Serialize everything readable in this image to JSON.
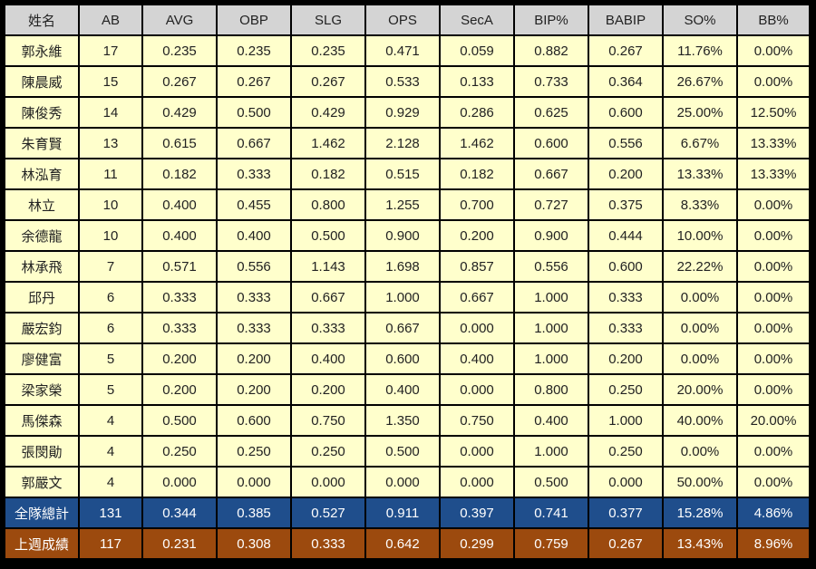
{
  "columns": [
    "姓名",
    "AB",
    "AVG",
    "OBP",
    "SLG",
    "OPS",
    "SecA",
    "BIP%",
    "BABIP",
    "SO%",
    "BB%"
  ],
  "rows": [
    [
      "郭永維",
      "17",
      "0.235",
      "0.235",
      "0.235",
      "0.471",
      "0.059",
      "0.882",
      "0.267",
      "11.76%",
      "0.00%"
    ],
    [
      "陳晨威",
      "15",
      "0.267",
      "0.267",
      "0.267",
      "0.533",
      "0.133",
      "0.733",
      "0.364",
      "26.67%",
      "0.00%"
    ],
    [
      "陳俊秀",
      "14",
      "0.429",
      "0.500",
      "0.429",
      "0.929",
      "0.286",
      "0.625",
      "0.600",
      "25.00%",
      "12.50%"
    ],
    [
      "朱育賢",
      "13",
      "0.615",
      "0.667",
      "1.462",
      "2.128",
      "1.462",
      "0.600",
      "0.556",
      "6.67%",
      "13.33%"
    ],
    [
      "林泓育",
      "11",
      "0.182",
      "0.333",
      "0.182",
      "0.515",
      "0.182",
      "0.667",
      "0.200",
      "13.33%",
      "13.33%"
    ],
    [
      "林立",
      "10",
      "0.400",
      "0.455",
      "0.800",
      "1.255",
      "0.700",
      "0.727",
      "0.375",
      "8.33%",
      "0.00%"
    ],
    [
      "余德龍",
      "10",
      "0.400",
      "0.400",
      "0.500",
      "0.900",
      "0.200",
      "0.900",
      "0.444",
      "10.00%",
      "0.00%"
    ],
    [
      "林承飛",
      "7",
      "0.571",
      "0.556",
      "1.143",
      "1.698",
      "0.857",
      "0.556",
      "0.600",
      "22.22%",
      "0.00%"
    ],
    [
      "邱丹",
      "6",
      "0.333",
      "0.333",
      "0.667",
      "1.000",
      "0.667",
      "1.000",
      "0.333",
      "0.00%",
      "0.00%"
    ],
    [
      "嚴宏鈞",
      "6",
      "0.333",
      "0.333",
      "0.333",
      "0.667",
      "0.000",
      "1.000",
      "0.333",
      "0.00%",
      "0.00%"
    ],
    [
      "廖健富",
      "5",
      "0.200",
      "0.200",
      "0.400",
      "0.600",
      "0.400",
      "1.000",
      "0.200",
      "0.00%",
      "0.00%"
    ],
    [
      "梁家榮",
      "5",
      "0.200",
      "0.200",
      "0.200",
      "0.400",
      "0.000",
      "0.800",
      "0.250",
      "20.00%",
      "0.00%"
    ],
    [
      "馬傑森",
      "4",
      "0.500",
      "0.600",
      "0.750",
      "1.350",
      "0.750",
      "0.400",
      "1.000",
      "40.00%",
      "20.00%"
    ],
    [
      "張閔勛",
      "4",
      "0.250",
      "0.250",
      "0.250",
      "0.500",
      "0.000",
      "1.000",
      "0.250",
      "0.00%",
      "0.00%"
    ],
    [
      "郭嚴文",
      "4",
      "0.000",
      "0.000",
      "0.000",
      "0.000",
      "0.000",
      "0.500",
      "0.000",
      "50.00%",
      "0.00%"
    ]
  ],
  "team_total": [
    "全隊總計",
    "131",
    "0.344",
    "0.385",
    "0.527",
    "0.911",
    "0.397",
    "0.741",
    "0.377",
    "15.28%",
    "4.86%"
  ],
  "last_week": [
    "上週成績",
    "117",
    "0.231",
    "0.308",
    "0.333",
    "0.642",
    "0.299",
    "0.759",
    "0.267",
    "13.43%",
    "8.96%"
  ],
  "colors": {
    "header_bg": "#d4d4d4",
    "row_bg": "#ffffcc",
    "total_bg": "#1f4e8c",
    "last_week_bg": "#9c4a0e",
    "grid": "#000000"
  }
}
